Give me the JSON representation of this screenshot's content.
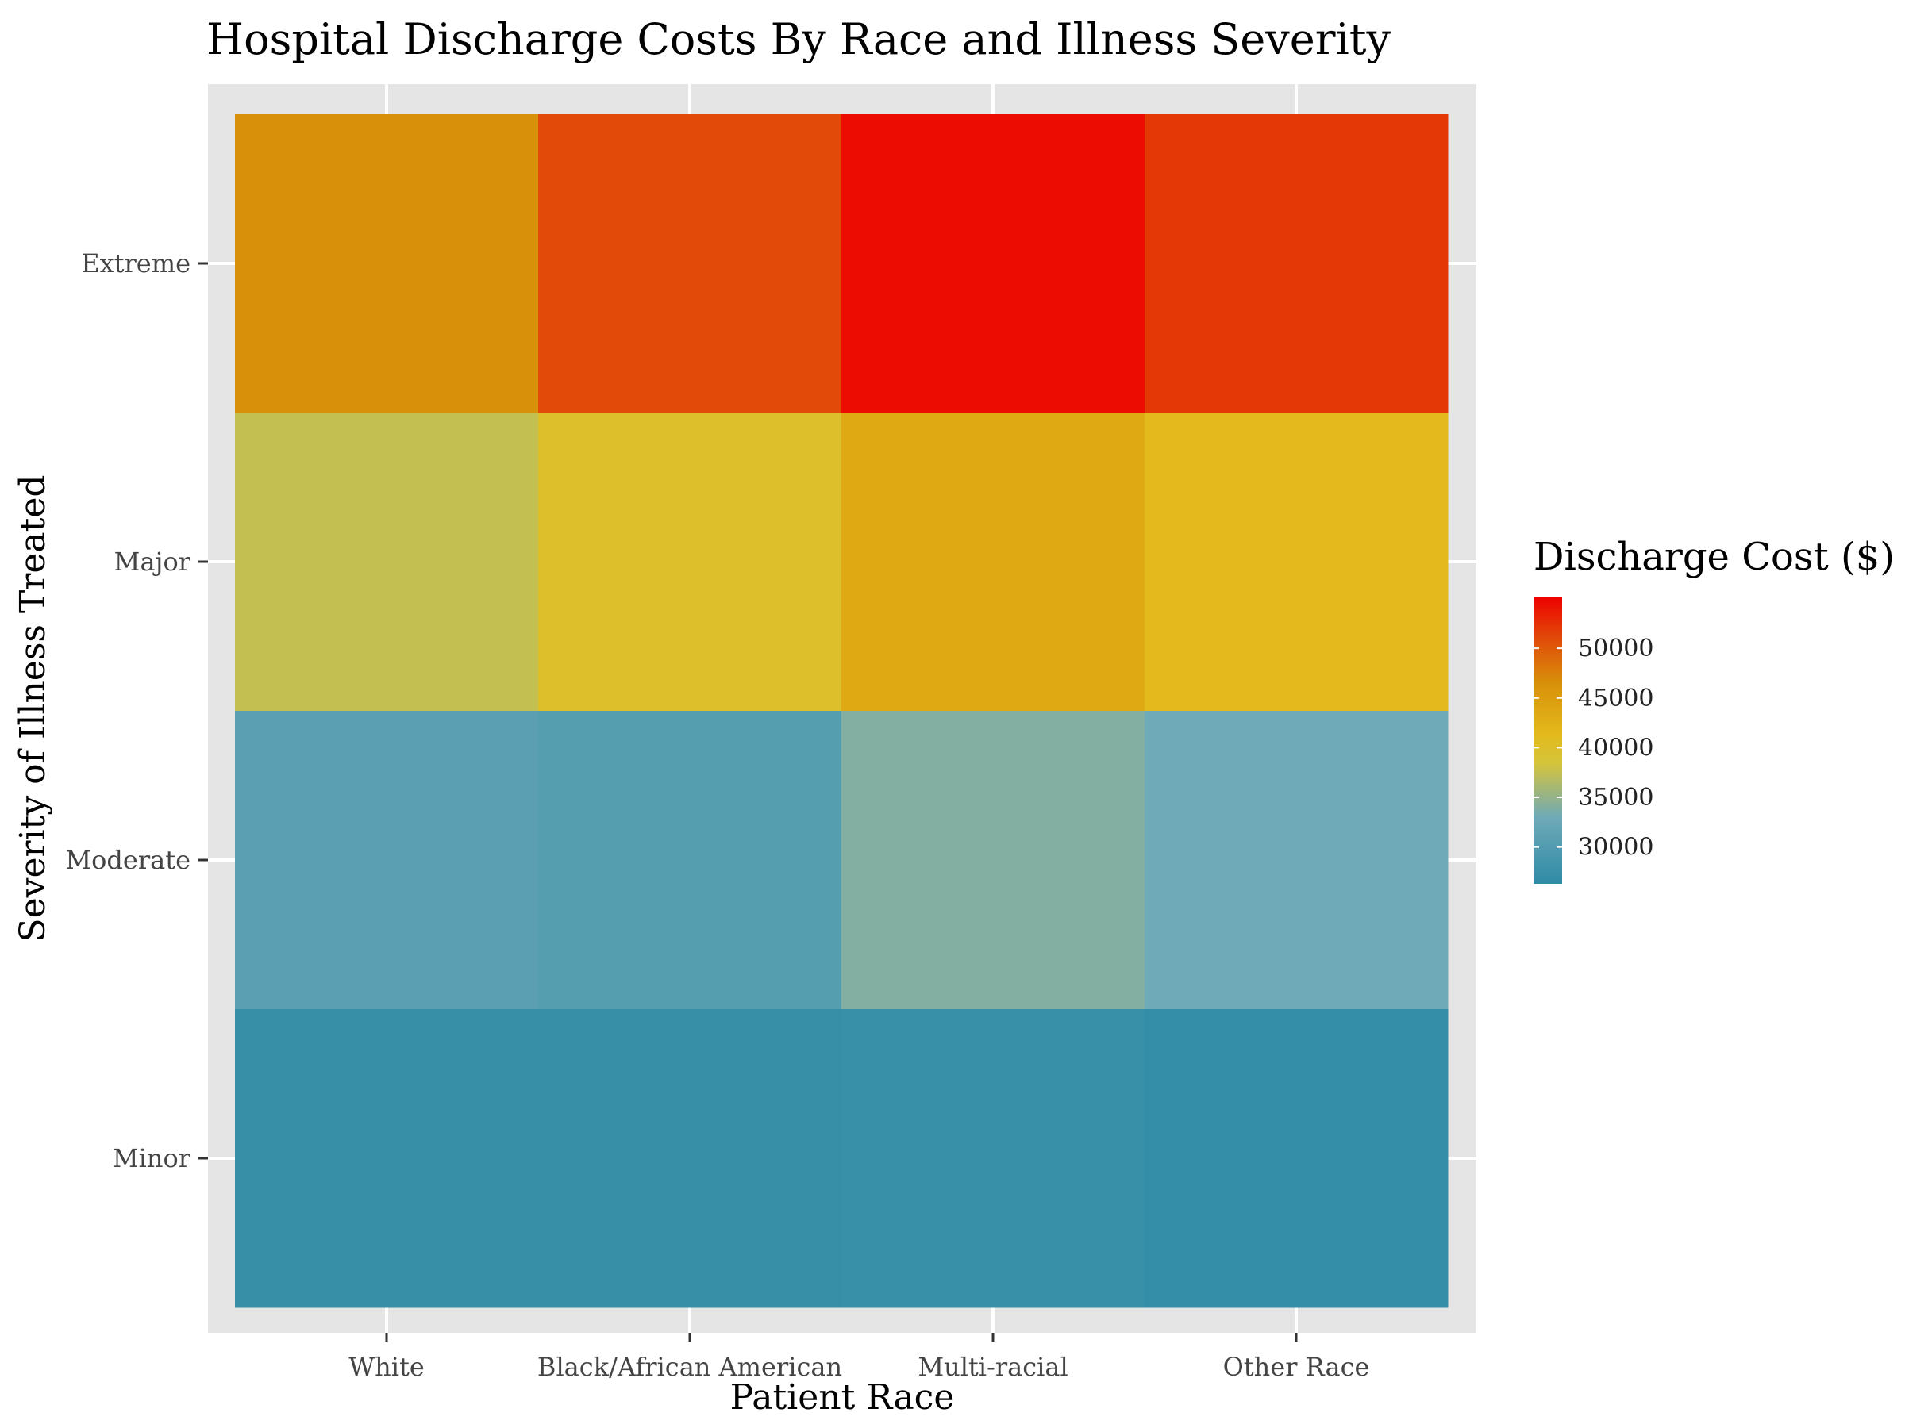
{
  "chart_data": {
    "type": "heatmap",
    "title": "Hospital Discharge Costs By Race and Illness Severity",
    "xlabel": "Patient Race",
    "ylabel": "Severity of Illness Treated",
    "x_categories": [
      "White",
      "Black/African American",
      "Multi-racial",
      "Other Race"
    ],
    "y_categories": [
      "Minor",
      "Moderate",
      "Major",
      "Extreme"
    ],
    "cells": [
      {
        "x": "White",
        "y": "Extreme",
        "value": 46500
      },
      {
        "x": "Black/African American",
        "y": "Extreme",
        "value": 51000
      },
      {
        "x": "Multi-racial",
        "y": "Extreme",
        "value": 54500
      },
      {
        "x": "Other Race",
        "y": "Extreme",
        "value": 52000
      },
      {
        "x": "White",
        "y": "Major",
        "value": 37500
      },
      {
        "x": "Black/African American",
        "y": "Major",
        "value": 40000
      },
      {
        "x": "Multi-racial",
        "y": "Major",
        "value": 43500
      },
      {
        "x": "Other Race",
        "y": "Major",
        "value": 41500
      },
      {
        "x": "White",
        "y": "Moderate",
        "value": 30800
      },
      {
        "x": "Black/African American",
        "y": "Moderate",
        "value": 30300
      },
      {
        "x": "Multi-racial",
        "y": "Moderate",
        "value": 34000
      },
      {
        "x": "Other Race",
        "y": "Moderate",
        "value": 33000
      },
      {
        "x": "White",
        "y": "Minor",
        "value": 27100
      },
      {
        "x": "Black/African American",
        "y": "Minor",
        "value": 27100
      },
      {
        "x": "Multi-racial",
        "y": "Minor",
        "value": 27300
      },
      {
        "x": "Other Race",
        "y": "Minor",
        "value": 27000
      }
    ],
    "legend": {
      "title": "Discharge Cost ($)",
      "ticks": [
        "50000",
        "45000",
        "40000",
        "35000",
        "30000"
      ],
      "tick_values": [
        50000,
        45000,
        40000,
        35000,
        30000
      ],
      "range": [
        26300,
        55200
      ],
      "color_stops": [
        {
          "value": 26300,
          "color": "#2E8BA5"
        },
        {
          "value": 33000,
          "color": "#6FAAB8"
        },
        {
          "value": 38500,
          "color": "#D6C43A"
        },
        {
          "value": 41500,
          "color": "#E3B91B"
        },
        {
          "value": 46500,
          "color": "#D8900A"
        },
        {
          "value": 51000,
          "color": "#E14A09"
        },
        {
          "value": 55200,
          "color": "#EE0000"
        }
      ]
    },
    "grid": true,
    "legend_position": "right"
  },
  "colors": {
    "panel_background": "#E5E5E5",
    "grid_line": "#FFFFFF"
  }
}
